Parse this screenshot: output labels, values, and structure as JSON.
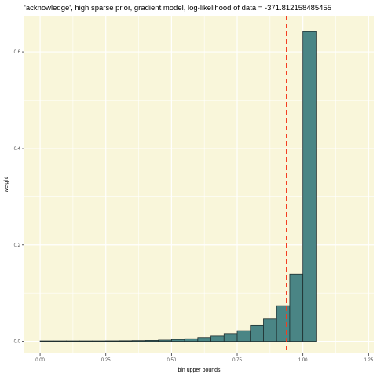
{
  "chart_data": {
    "type": "bar",
    "title": "'acknowledge', high sparse prior, gradient model, log-likelihood of data = -371.812158485455",
    "xlabel": "bin upper bounds",
    "ylabel": "weight",
    "xlim": [
      -0.06,
      1.27
    ],
    "ylim": [
      -0.025,
      0.675
    ],
    "x_ticks": [
      0.0,
      0.25,
      0.5,
      0.75,
      1.0,
      1.25
    ],
    "x_tick_labels": [
      "0.00",
      "0.25",
      "0.50",
      "0.75",
      "1.00",
      "1.25"
    ],
    "y_ticks": [
      0.0,
      0.2,
      0.4,
      0.6
    ],
    "y_tick_labels": [
      "0.0",
      "0.2",
      "0.4",
      "0.6"
    ],
    "grid": true,
    "bin_width": 0.05,
    "bins": [
      {
        "x": 0.025,
        "value": 0.0005
      },
      {
        "x": 0.075,
        "value": 0.0006
      },
      {
        "x": 0.125,
        "value": 0.0007
      },
      {
        "x": 0.175,
        "value": 0.0008
      },
      {
        "x": 0.225,
        "value": 0.0009
      },
      {
        "x": 0.275,
        "value": 0.0011
      },
      {
        "x": 0.325,
        "value": 0.0013
      },
      {
        "x": 0.375,
        "value": 0.0016
      },
      {
        "x": 0.425,
        "value": 0.002
      },
      {
        "x": 0.475,
        "value": 0.0027
      },
      {
        "x": 0.525,
        "value": 0.004
      },
      {
        "x": 0.575,
        "value": 0.0055
      },
      {
        "x": 0.625,
        "value": 0.008
      },
      {
        "x": 0.675,
        "value": 0.011
      },
      {
        "x": 0.725,
        "value": 0.016
      },
      {
        "x": 0.775,
        "value": 0.022
      },
      {
        "x": 0.825,
        "value": 0.033
      },
      {
        "x": 0.875,
        "value": 0.047
      },
      {
        "x": 0.925,
        "value": 0.074
      },
      {
        "x": 0.975,
        "value": 0.139
      },
      {
        "x": 1.025,
        "value": 0.642
      }
    ],
    "reference_line": {
      "x": 0.938,
      "style": "dashed"
    },
    "colors": {
      "panel_background": "#f9f6da",
      "grid": "#ffffff",
      "bar_fill": "#4a8585",
      "bar_stroke": "#1f2f2f",
      "reference_line": "#f43b1f"
    }
  }
}
